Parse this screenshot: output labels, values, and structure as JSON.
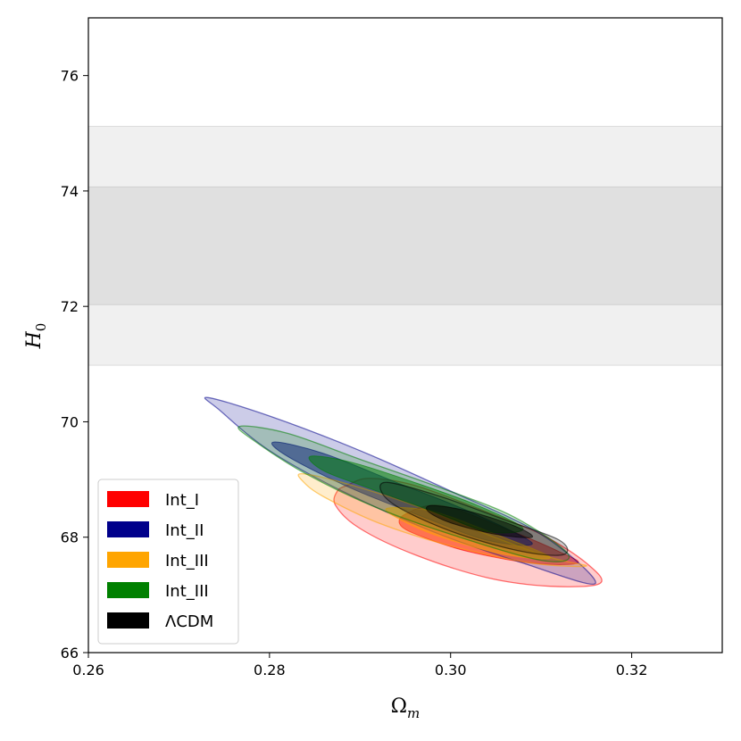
{
  "chart_data": {
    "type": "contour",
    "xlabel_main": "Ω",
    "xlabel_sub": "m",
    "ylabel_main": "H",
    "ylabel_sub": "0",
    "xlim": [
      0.26,
      0.33
    ],
    "ylim": [
      66,
      77
    ],
    "xticks": [
      0.26,
      0.28,
      0.3,
      0.32
    ],
    "xtick_labels": [
      "0.26",
      "0.28",
      "0.30",
      "0.32"
    ],
    "yticks": [
      66,
      68,
      70,
      72,
      74,
      76
    ],
    "ytick_labels": [
      "66",
      "68",
      "70",
      "72",
      "74",
      "76"
    ],
    "grid": false,
    "legend_position": "lower-left",
    "reference_band": {
      "inner": [
        72.03,
        74.07
      ],
      "outer": [
        70.98,
        75.12
      ],
      "inner_color": "#e0e0e0",
      "outer_color": "#f0f0f0"
    },
    "series": [
      {
        "name": "Int_I",
        "color": "#ff0000",
        "outer": [
          [
            0.2886,
            68.9
          ],
          [
            0.291,
            69.02
          ],
          [
            0.296,
            68.9
          ],
          [
            0.303,
            68.5
          ],
          [
            0.31,
            68.05
          ],
          [
            0.315,
            67.55
          ],
          [
            0.3165,
            67.2
          ],
          [
            0.311,
            67.15
          ],
          [
            0.304,
            67.3
          ],
          [
            0.296,
            67.7
          ],
          [
            0.29,
            68.15
          ],
          [
            0.2873,
            68.55
          ],
          [
            0.2875,
            68.8
          ]
        ],
        "inner": [
          [
            0.295,
            68.4
          ],
          [
            0.299,
            68.55
          ],
          [
            0.306,
            68.15
          ],
          [
            0.312,
            67.75
          ],
          [
            0.314,
            67.55
          ],
          [
            0.309,
            67.55
          ],
          [
            0.302,
            67.75
          ],
          [
            0.297,
            68.0
          ],
          [
            0.2945,
            68.2
          ]
        ]
      },
      {
        "name": "Int_II",
        "color": "#00008b",
        "outer": [
          [
            0.2732,
            70.42
          ],
          [
            0.28,
            70.1
          ],
          [
            0.29,
            69.5
          ],
          [
            0.3,
            68.8
          ],
          [
            0.31,
            68.05
          ],
          [
            0.316,
            67.2
          ],
          [
            0.308,
            67.55
          ],
          [
            0.298,
            68.1
          ],
          [
            0.288,
            68.8
          ],
          [
            0.28,
            69.5
          ],
          [
            0.2745,
            70.2
          ]
        ],
        "inner": [
          [
            0.2805,
            69.65
          ],
          [
            0.286,
            69.45
          ],
          [
            0.294,
            68.95
          ],
          [
            0.302,
            68.45
          ],
          [
            0.309,
            67.9
          ],
          [
            0.304,
            67.95
          ],
          [
            0.297,
            68.35
          ],
          [
            0.289,
            68.85
          ],
          [
            0.282,
            69.4
          ]
        ]
      },
      {
        "name": "Int_III",
        "color": "#ffa500",
        "outer": [
          [
            0.2835,
            69.1
          ],
          [
            0.288,
            68.95
          ],
          [
            0.296,
            68.55
          ],
          [
            0.304,
            68.05
          ],
          [
            0.311,
            67.65
          ],
          [
            0.315,
            67.5
          ],
          [
            0.309,
            67.55
          ],
          [
            0.3,
            67.85
          ],
          [
            0.292,
            68.25
          ],
          [
            0.286,
            68.7
          ],
          [
            0.2838,
            68.95
          ]
        ],
        "inner": [
          [
            0.293,
            68.5
          ],
          [
            0.298,
            68.45
          ],
          [
            0.305,
            68.05
          ],
          [
            0.311,
            67.65
          ],
          [
            0.306,
            67.7
          ],
          [
            0.299,
            68.0
          ],
          [
            0.2945,
            68.3
          ]
        ]
      },
      {
        "name": "Int_III",
        "color": "#008000",
        "outer": [
          [
            0.2767,
            69.92
          ],
          [
            0.282,
            69.8
          ],
          [
            0.29,
            69.35
          ],
          [
            0.299,
            68.85
          ],
          [
            0.307,
            68.35
          ],
          [
            0.313,
            67.7
          ],
          [
            0.31,
            67.6
          ],
          [
            0.301,
            68.0
          ],
          [
            0.292,
            68.5
          ],
          [
            0.284,
            69.1
          ],
          [
            0.2785,
            69.65
          ]
        ],
        "inner": [
          [
            0.2845,
            69.4
          ],
          [
            0.289,
            69.3
          ],
          [
            0.296,
            68.95
          ],
          [
            0.303,
            68.55
          ],
          [
            0.308,
            68.15
          ],
          [
            0.304,
            68.1
          ],
          [
            0.298,
            68.45
          ],
          [
            0.291,
            68.85
          ],
          [
            0.286,
            69.15
          ]
        ]
      },
      {
        "name": "ΛCDM",
        "color": "#000000",
        "outer": [
          [
            0.293,
            68.95
          ],
          [
            0.299,
            68.7
          ],
          [
            0.306,
            68.3
          ],
          [
            0.312,
            67.95
          ],
          [
            0.3125,
            67.7
          ],
          [
            0.308,
            67.75
          ],
          [
            0.301,
            68.05
          ],
          [
            0.295,
            68.45
          ],
          [
            0.2925,
            68.75
          ]
        ],
        "inner": [
          [
            0.298,
            68.55
          ],
          [
            0.302,
            68.45
          ],
          [
            0.307,
            68.2
          ],
          [
            0.309,
            68.0
          ],
          [
            0.305,
            68.05
          ],
          [
            0.3,
            68.25
          ],
          [
            0.2975,
            68.45
          ]
        ]
      }
    ]
  }
}
